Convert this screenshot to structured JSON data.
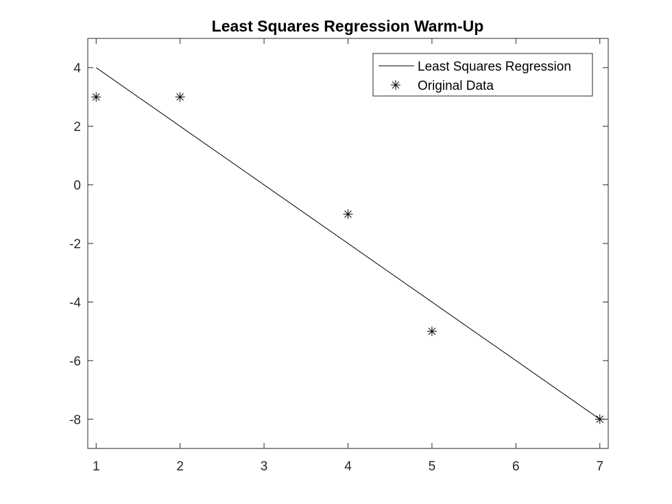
{
  "chart_data": {
    "type": "line",
    "title": "Least Squares Regression Warm-Up",
    "xlabel": "",
    "ylabel": "",
    "xlim": [
      0.9,
      7.1
    ],
    "ylim": [
      -9,
      5
    ],
    "xticks": [
      1,
      2,
      3,
      4,
      5,
      6,
      7
    ],
    "yticks": [
      -8,
      -6,
      -4,
      -2,
      0,
      2,
      4
    ],
    "grid": false,
    "legend_position": "top-right",
    "series": [
      {
        "name": "Least Squares Regression",
        "kind": "line",
        "color": "#000000",
        "x": [
          1,
          7
        ],
        "y": [
          4,
          -8
        ]
      },
      {
        "name": "Original Data",
        "kind": "marker",
        "marker": "asterisk",
        "color": "#000000",
        "x": [
          1,
          2,
          4,
          5,
          7
        ],
        "y": [
          3,
          3,
          -1,
          -5,
          -8
        ]
      }
    ]
  }
}
